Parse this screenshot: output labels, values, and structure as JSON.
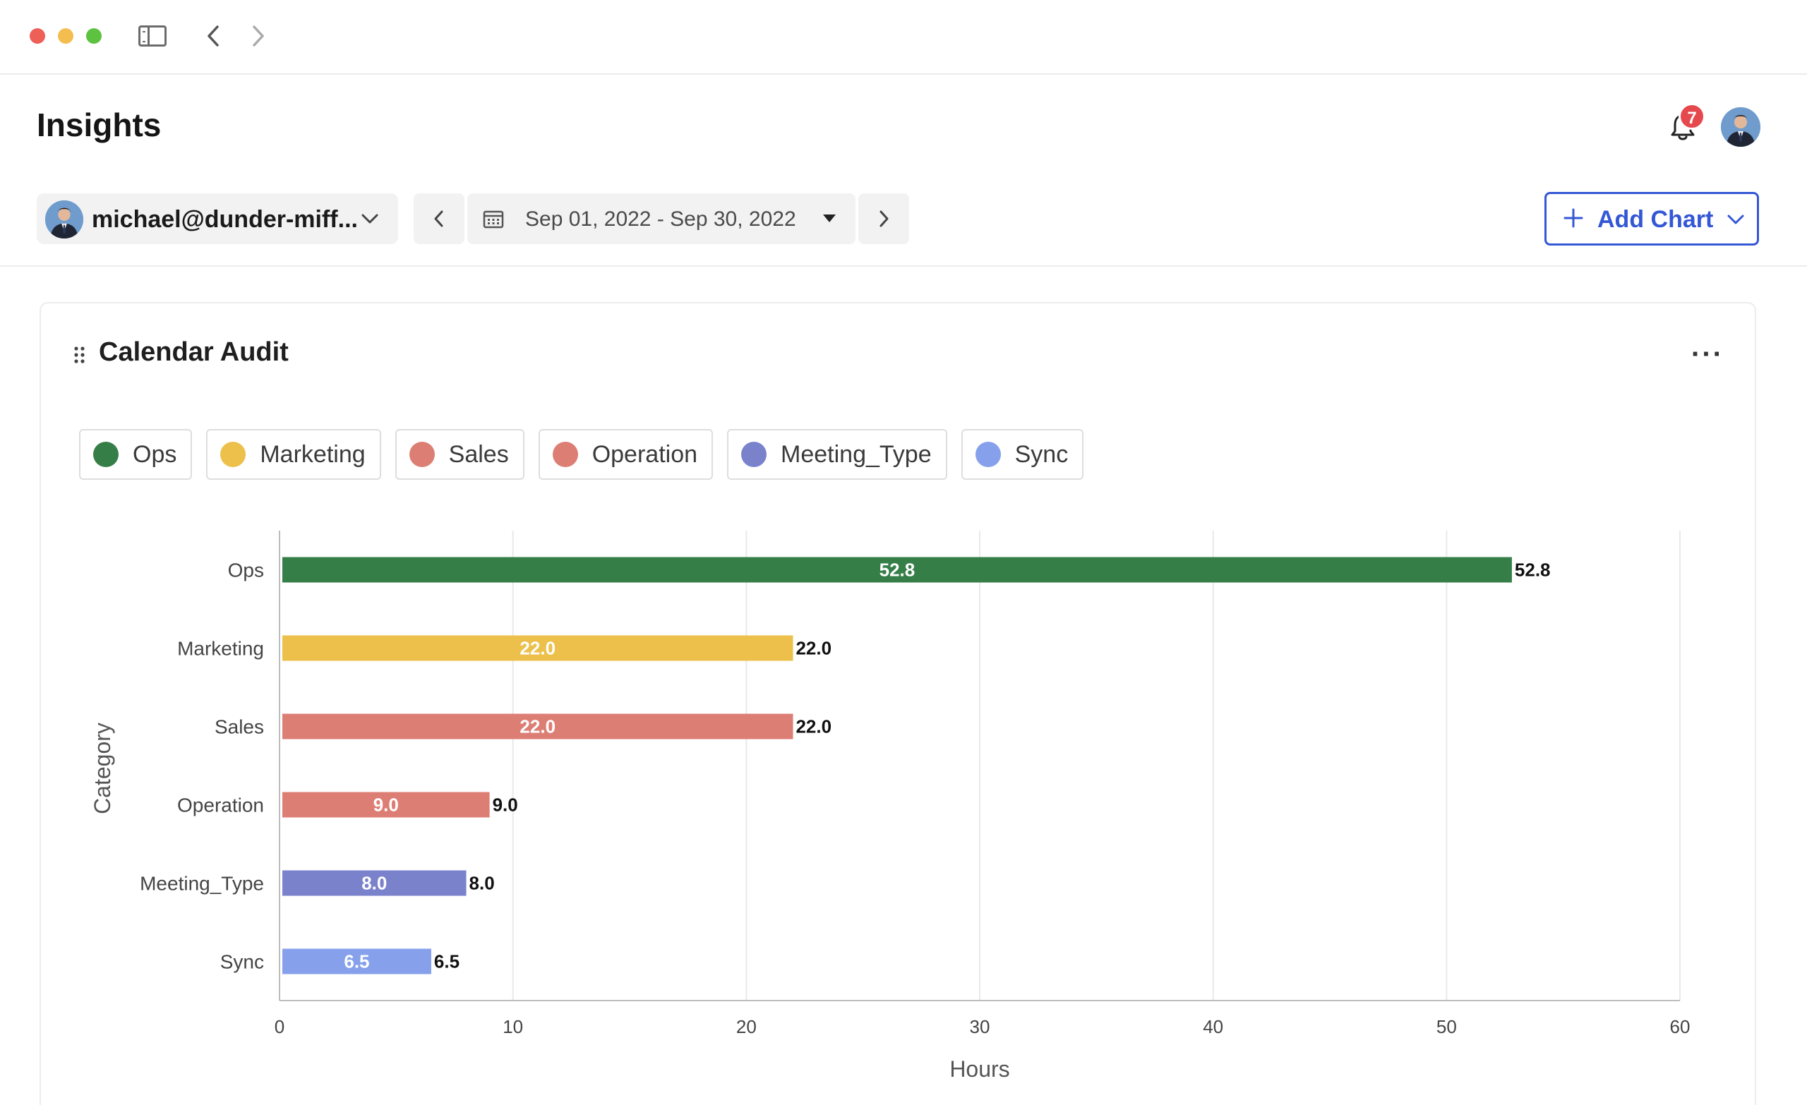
{
  "header": {
    "title": "Insights",
    "notification_count": "7"
  },
  "toolbar": {
    "user_label": "michael@dunder-miff...",
    "date_range": "Sep 01, 2022 - Sep 30, 2022",
    "add_chart_label": "Add Chart"
  },
  "card": {
    "title": "Calendar Audit",
    "more_label": "···"
  },
  "legend": [
    {
      "label": "Ops",
      "color": "#367e47"
    },
    {
      "label": "Marketing",
      "color": "#ecc04a"
    },
    {
      "label": "Sales",
      "color": "#dd7e74"
    },
    {
      "label": "Operation",
      "color": "#dd7e74"
    },
    {
      "label": "Meeting_Type",
      "color": "#7a82cc"
    },
    {
      "label": "Sync",
      "color": "#86a0ec"
    }
  ],
  "chart_data": {
    "type": "bar",
    "orientation": "horizontal",
    "categories": [
      "Ops",
      "Marketing",
      "Sales",
      "Operation",
      "Meeting_Type",
      "Sync"
    ],
    "values": [
      52.8,
      22.0,
      22.0,
      9.0,
      8.0,
      6.5
    ],
    "value_labels": [
      "52.8",
      "22.0",
      "22.0",
      "9.0",
      "8.0",
      "6.5"
    ],
    "colors": [
      "#367e47",
      "#ecc04a",
      "#dd7e74",
      "#dd7e74",
      "#7a82cc",
      "#86a0ec"
    ],
    "xlabel": "Hours",
    "ylabel": "Category",
    "xlim": [
      0,
      60
    ],
    "xticks": [
      "0",
      "10",
      "20",
      "30",
      "40",
      "50",
      "60"
    ],
    "grid": true
  }
}
